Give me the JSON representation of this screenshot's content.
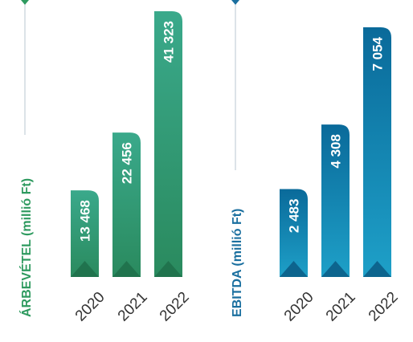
{
  "colors": {
    "revenue_top": "#3aa98b",
    "revenue_bottom": "#2a8a5e",
    "revenue_dark": "#1f6f4a",
    "revenue_title": "#2e9a5f",
    "ebitda_top": "#0a6a9a",
    "ebitda_bottom": "#1ea0c8",
    "ebitda_dark": "#0a5a84",
    "ebitda_title": "#1a6f9f",
    "guide_line": "#b9c7d0"
  },
  "chart_data": [
    {
      "type": "bar",
      "title": "ÁRBEVÉTEL (millió Ft)",
      "categories": [
        "2020",
        "2021",
        "2022"
      ],
      "values": [
        13468,
        22456,
        41323
      ],
      "value_labels": [
        "13 468",
        "22 456",
        "41 323"
      ],
      "ylim": [
        0,
        41323
      ],
      "grid": false,
      "legend": "none"
    },
    {
      "type": "bar",
      "title": "EBITDA (millió Ft)",
      "categories": [
        "2020",
        "2021",
        "2022"
      ],
      "values": [
        2483,
        4308,
        7054
      ],
      "value_labels": [
        "2 483",
        "4 308",
        "7 054"
      ],
      "ylim": [
        0,
        7054
      ],
      "grid": false,
      "legend": "none"
    }
  ]
}
